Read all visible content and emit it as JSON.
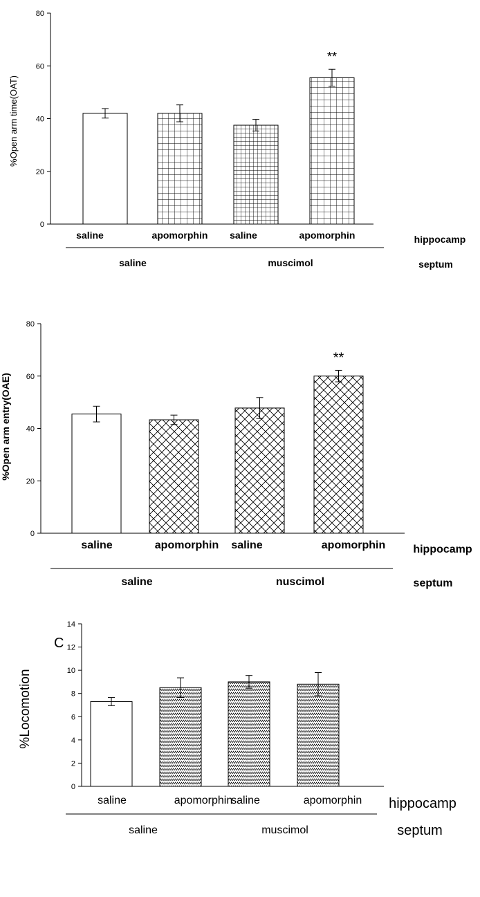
{
  "chart_data": [
    {
      "type": "bar",
      "panel_label": "",
      "title": "",
      "ylabel": "%Open arm time(OAT)",
      "ylim": [
        0,
        80
      ],
      "yticks": [
        "0",
        "20",
        "40",
        "60",
        "80"
      ],
      "yticks_values": [
        0,
        20,
        40,
        60,
        80
      ],
      "categories": [
        "saline",
        "apomorphin",
        "saline",
        "apomorphin"
      ],
      "values": [
        42,
        42,
        37.5,
        55.5
      ],
      "errors": [
        1.8,
        3.2,
        2.2,
        3.2
      ],
      "patterns": [
        "none",
        "grid",
        "grid-dense",
        "grid"
      ],
      "annotations": [
        "",
        "",
        "",
        "**"
      ],
      "row1_label": "hippocamp",
      "row2_groups": [
        "saline",
        "muscimol"
      ],
      "row2_label": "septum"
    },
    {
      "type": "bar",
      "panel_label": "",
      "title": "",
      "ylabel": "%Open arm entry(OAE)",
      "ylim": [
        0,
        80
      ],
      "yticks": [
        "0",
        "20",
        "40",
        "60",
        "80"
      ],
      "yticks_values": [
        0,
        20,
        40,
        60,
        80
      ],
      "categories": [
        "saline",
        "apomorphin",
        "saline",
        "apomorphin"
      ],
      "values": [
        45.5,
        43.3,
        47.8,
        60
      ],
      "errors": [
        3,
        1.8,
        4,
        2.2
      ],
      "patterns": [
        "none",
        "crosshatch",
        "crosshatch",
        "crosshatch"
      ],
      "annotations": [
        "",
        "",
        "",
        "**"
      ],
      "row1_label": "hippocamp",
      "row2_groups": [
        "saline",
        "nuscimol"
      ],
      "row2_label": "septum"
    },
    {
      "type": "bar",
      "panel_label": "C",
      "title": "",
      "ylabel": "%Locomotion",
      "ylim": [
        0,
        14
      ],
      "yticks": [
        "0",
        "2",
        "4",
        "6",
        "8",
        "10",
        "12",
        "14"
      ],
      "yticks_values": [
        0,
        2,
        4,
        6,
        8,
        10,
        12,
        14
      ],
      "categories": [
        "saline",
        "apomorphin",
        "saline",
        "apomorphin"
      ],
      "values": [
        7.3,
        8.5,
        9,
        8.8
      ],
      "errors": [
        0.35,
        0.85,
        0.55,
        1
      ],
      "patterns": [
        "none",
        "zigzag",
        "zigzag",
        "zigzag"
      ],
      "annotations": [
        "",
        "",
        "",
        ""
      ],
      "row1_label": "hippocamp",
      "row2_groups": [
        "saline",
        "muscimol"
      ],
      "row2_label": "septum"
    }
  ]
}
